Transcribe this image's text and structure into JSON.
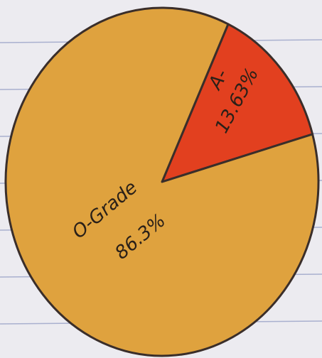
{
  "chart_data": {
    "type": "pie",
    "categories": [
      "A-",
      "O-Grade"
    ],
    "values": [
      13.63,
      86.3
    ],
    "value_labels": [
      "13.63%",
      "86.3%"
    ],
    "colors": [
      "#e2401f",
      "#dfa23e"
    ]
  }
}
